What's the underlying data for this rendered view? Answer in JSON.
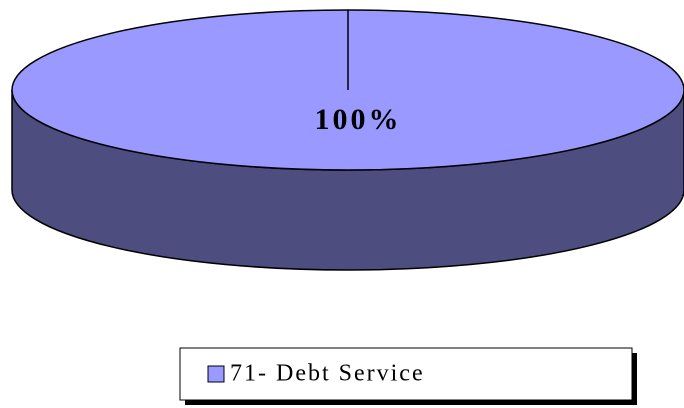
{
  "chart_data": {
    "type": "pie",
    "categories": [
      "71- Debt Service"
    ],
    "values": [
      100
    ],
    "value_labels": [
      "100%"
    ],
    "colors": [
      "#9999ff"
    ]
  }
}
